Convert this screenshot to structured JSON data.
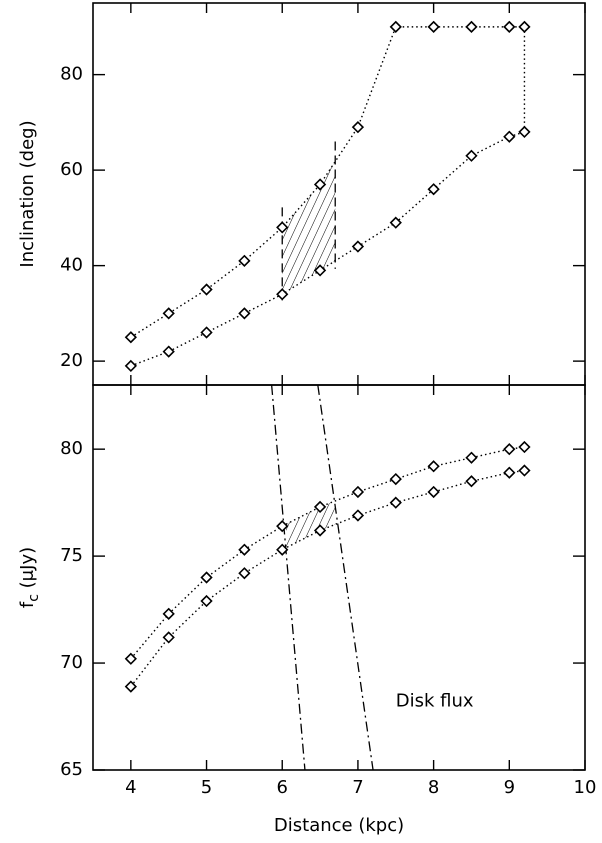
{
  "chart_data": [
    {
      "type": "line",
      "ylabel": "Inclination (deg)",
      "x": [
        4,
        4.5,
        5,
        5.5,
        6,
        6.5,
        7,
        7.5,
        8,
        8.5,
        9,
        9.2
      ],
      "series": [
        {
          "color": "#000000",
          "values": [
            25,
            30,
            35,
            41,
            48,
            57,
            69,
            90,
            90,
            90,
            90,
            90
          ]
        },
        {
          "color": "#000000",
          "values": [
            19,
            22,
            26,
            30,
            34,
            39,
            44,
            49,
            56,
            63,
            67,
            68
          ]
        }
      ],
      "close_ends": true,
      "shaded_xrange": [
        6.0,
        6.7
      ],
      "xlim": [
        3.5,
        10
      ],
      "xticks": [
        4,
        5,
        6,
        7,
        8,
        9,
        10
      ],
      "show_xtick_labels": false,
      "ylim": [
        15,
        95
      ],
      "yticks": [
        20,
        40,
        60,
        80
      ]
    },
    {
      "type": "line",
      "ylabel": [
        "f",
        "c",
        " (μJy)"
      ],
      "xlabel": "Distance (kpc)",
      "annotation": {
        "text": "Disk flux",
        "x": 7.5,
        "y": 68.2
      },
      "x": [
        4,
        4.5,
        5,
        5.5,
        6,
        6.5,
        7,
        7.5,
        8,
        8.5,
        9,
        9.2
      ],
      "series": [
        {
          "color": "#000000",
          "values": [
            70.2,
            72.3,
            74.0,
            75.3,
            76.4,
            77.3,
            78.0,
            78.6,
            79.2,
            79.6,
            80.0,
            80.1
          ]
        },
        {
          "color": "#000000",
          "values": [
            68.9,
            71.2,
            72.9,
            74.2,
            75.3,
            76.2,
            76.9,
            77.5,
            78.0,
            78.5,
            78.9,
            79.0
          ]
        }
      ],
      "lines": [
        {
          "x": [
            5.86,
            6.3
          ],
          "values": [
            83,
            65
          ]
        },
        {
          "x": [
            6.47,
            7.2
          ],
          "values": [
            83,
            65
          ]
        }
      ],
      "shaded_xrange": [
        6.05,
        6.7
      ],
      "xlim": [
        3.5,
        10
      ],
      "xticks": [
        4,
        5,
        6,
        7,
        8,
        9,
        10
      ],
      "show_xtick_labels": true,
      "ylim": [
        65,
        83
      ],
      "yticks": [
        65,
        70,
        75,
        80
      ]
    }
  ]
}
